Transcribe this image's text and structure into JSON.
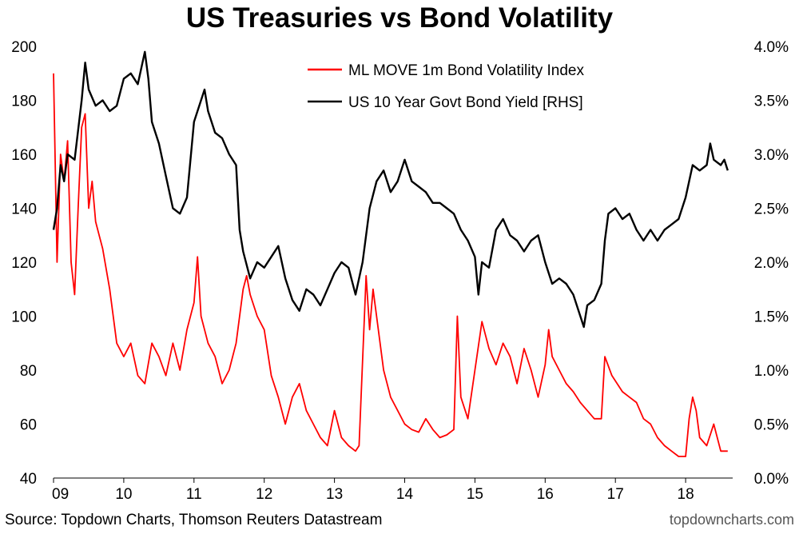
{
  "chart_data": {
    "type": "line",
    "title": "US Treasuries vs Bond Volatility",
    "x_ticks": [
      "09",
      "10",
      "11",
      "12",
      "13",
      "14",
      "15",
      "16",
      "17",
      "18"
    ],
    "y_left": {
      "ticks": [
        "40",
        "60",
        "80",
        "100",
        "120",
        "140",
        "160",
        "180",
        "200"
      ],
      "min": 40,
      "max": 200
    },
    "y_right": {
      "ticks": [
        "0.0%",
        "0.5%",
        "1.0%",
        "1.5%",
        "2.0%",
        "2.5%",
        "3.0%",
        "3.5%",
        "4.0%"
      ],
      "min": 0,
      "max": 4
    },
    "legend_position": "top-right",
    "grid": false,
    "series": [
      {
        "name": "ML MOVE 1m Bond Volatility Index",
        "axis": "left",
        "color": "#ff0000",
        "points": [
          [
            2009.0,
            190
          ],
          [
            2009.05,
            120
          ],
          [
            2009.1,
            160
          ],
          [
            2009.15,
            150
          ],
          [
            2009.2,
            165
          ],
          [
            2009.25,
            120
          ],
          [
            2009.3,
            108
          ],
          [
            2009.35,
            140
          ],
          [
            2009.4,
            170
          ],
          [
            2009.45,
            175
          ],
          [
            2009.5,
            140
          ],
          [
            2009.55,
            150
          ],
          [
            2009.6,
            135
          ],
          [
            2009.65,
            130
          ],
          [
            2009.7,
            125
          ],
          [
            2009.8,
            110
          ],
          [
            2009.9,
            90
          ],
          [
            2010.0,
            85
          ],
          [
            2010.1,
            90
          ],
          [
            2010.2,
            78
          ],
          [
            2010.3,
            75
          ],
          [
            2010.4,
            90
          ],
          [
            2010.5,
            85
          ],
          [
            2010.6,
            78
          ],
          [
            2010.7,
            90
          ],
          [
            2010.8,
            80
          ],
          [
            2010.9,
            95
          ],
          [
            2011.0,
            105
          ],
          [
            2011.05,
            122
          ],
          [
            2011.1,
            100
          ],
          [
            2011.2,
            90
          ],
          [
            2011.3,
            85
          ],
          [
            2011.4,
            75
          ],
          [
            2011.5,
            80
          ],
          [
            2011.6,
            90
          ],
          [
            2011.7,
            110
          ],
          [
            2011.75,
            115
          ],
          [
            2011.8,
            108
          ],
          [
            2011.9,
            100
          ],
          [
            2012.0,
            95
          ],
          [
            2012.1,
            78
          ],
          [
            2012.2,
            70
          ],
          [
            2012.3,
            60
          ],
          [
            2012.4,
            70
          ],
          [
            2012.5,
            75
          ],
          [
            2012.6,
            65
          ],
          [
            2012.7,
            60
          ],
          [
            2012.8,
            55
          ],
          [
            2012.9,
            52
          ],
          [
            2013.0,
            65
          ],
          [
            2013.1,
            55
          ],
          [
            2013.2,
            52
          ],
          [
            2013.3,
            50
          ],
          [
            2013.35,
            52
          ],
          [
            2013.45,
            115
          ],
          [
            2013.5,
            95
          ],
          [
            2013.55,
            110
          ],
          [
            2013.6,
            100
          ],
          [
            2013.7,
            80
          ],
          [
            2013.8,
            70
          ],
          [
            2013.9,
            65
          ],
          [
            2014.0,
            60
          ],
          [
            2014.1,
            58
          ],
          [
            2014.2,
            57
          ],
          [
            2014.3,
            62
          ],
          [
            2014.4,
            58
          ],
          [
            2014.5,
            55
          ],
          [
            2014.6,
            56
          ],
          [
            2014.7,
            58
          ],
          [
            2014.75,
            100
          ],
          [
            2014.8,
            70
          ],
          [
            2014.9,
            62
          ],
          [
            2015.0,
            80
          ],
          [
            2015.1,
            98
          ],
          [
            2015.2,
            88
          ],
          [
            2015.3,
            82
          ],
          [
            2015.4,
            90
          ],
          [
            2015.5,
            85
          ],
          [
            2015.6,
            75
          ],
          [
            2015.7,
            88
          ],
          [
            2015.8,
            80
          ],
          [
            2015.9,
            70
          ],
          [
            2016.0,
            82
          ],
          [
            2016.05,
            95
          ],
          [
            2016.1,
            85
          ],
          [
            2016.2,
            80
          ],
          [
            2016.3,
            75
          ],
          [
            2016.4,
            72
          ],
          [
            2016.5,
            68
          ],
          [
            2016.6,
            65
          ],
          [
            2016.7,
            62
          ],
          [
            2016.8,
            62
          ],
          [
            2016.85,
            85
          ],
          [
            2016.95,
            78
          ],
          [
            2017.1,
            72
          ],
          [
            2017.2,
            70
          ],
          [
            2017.3,
            68
          ],
          [
            2017.4,
            62
          ],
          [
            2017.5,
            60
          ],
          [
            2017.6,
            55
          ],
          [
            2017.7,
            52
          ],
          [
            2017.8,
            50
          ],
          [
            2017.9,
            48
          ],
          [
            2018.0,
            48
          ],
          [
            2018.05,
            62
          ],
          [
            2018.1,
            70
          ],
          [
            2018.15,
            65
          ],
          [
            2018.2,
            55
          ],
          [
            2018.3,
            52
          ],
          [
            2018.4,
            60
          ],
          [
            2018.5,
            50
          ],
          [
            2018.6,
            50
          ]
        ]
      },
      {
        "name": "US 10 Year Govt Bond Yield [RHS]",
        "axis": "right",
        "color": "#000000",
        "points": [
          [
            2009.0,
            2.3
          ],
          [
            2009.05,
            2.5
          ],
          [
            2009.1,
            2.9
          ],
          [
            2009.15,
            2.75
          ],
          [
            2009.2,
            3.0
          ],
          [
            2009.3,
            2.95
          ],
          [
            2009.4,
            3.5
          ],
          [
            2009.45,
            3.85
          ],
          [
            2009.5,
            3.6
          ],
          [
            2009.6,
            3.45
          ],
          [
            2009.7,
            3.5
          ],
          [
            2009.8,
            3.4
          ],
          [
            2009.9,
            3.45
          ],
          [
            2010.0,
            3.7
          ],
          [
            2010.1,
            3.75
          ],
          [
            2010.2,
            3.65
          ],
          [
            2010.3,
            3.95
          ],
          [
            2010.35,
            3.7
          ],
          [
            2010.4,
            3.3
          ],
          [
            2010.5,
            3.1
          ],
          [
            2010.6,
            2.8
          ],
          [
            2010.7,
            2.5
          ],
          [
            2010.8,
            2.45
          ],
          [
            2010.9,
            2.6
          ],
          [
            2011.0,
            3.3
          ],
          [
            2011.1,
            3.5
          ],
          [
            2011.15,
            3.6
          ],
          [
            2011.2,
            3.4
          ],
          [
            2011.3,
            3.2
          ],
          [
            2011.4,
            3.15
          ],
          [
            2011.5,
            3.0
          ],
          [
            2011.6,
            2.9
          ],
          [
            2011.65,
            2.3
          ],
          [
            2011.7,
            2.1
          ],
          [
            2011.8,
            1.85
          ],
          [
            2011.9,
            2.0
          ],
          [
            2012.0,
            1.95
          ],
          [
            2012.1,
            2.05
          ],
          [
            2012.2,
            2.15
          ],
          [
            2012.3,
            1.85
          ],
          [
            2012.4,
            1.65
          ],
          [
            2012.5,
            1.55
          ],
          [
            2012.6,
            1.75
          ],
          [
            2012.7,
            1.7
          ],
          [
            2012.8,
            1.6
          ],
          [
            2012.9,
            1.75
          ],
          [
            2013.0,
            1.9
          ],
          [
            2013.1,
            2.0
          ],
          [
            2013.2,
            1.95
          ],
          [
            2013.3,
            1.7
          ],
          [
            2013.4,
            2.0
          ],
          [
            2013.5,
            2.5
          ],
          [
            2013.6,
            2.75
          ],
          [
            2013.7,
            2.85
          ],
          [
            2013.8,
            2.65
          ],
          [
            2013.9,
            2.75
          ],
          [
            2014.0,
            2.95
          ],
          [
            2014.1,
            2.75
          ],
          [
            2014.2,
            2.7
          ],
          [
            2014.3,
            2.65
          ],
          [
            2014.4,
            2.55
          ],
          [
            2014.5,
            2.55
          ],
          [
            2014.6,
            2.5
          ],
          [
            2014.7,
            2.45
          ],
          [
            2014.8,
            2.3
          ],
          [
            2014.9,
            2.2
          ],
          [
            2015.0,
            2.05
          ],
          [
            2015.05,
            1.7
          ],
          [
            2015.1,
            2.0
          ],
          [
            2015.2,
            1.95
          ],
          [
            2015.3,
            2.3
          ],
          [
            2015.4,
            2.4
          ],
          [
            2015.5,
            2.25
          ],
          [
            2015.6,
            2.2
          ],
          [
            2015.7,
            2.1
          ],
          [
            2015.8,
            2.2
          ],
          [
            2015.9,
            2.25
          ],
          [
            2016.0,
            2.0
          ],
          [
            2016.1,
            1.8
          ],
          [
            2016.2,
            1.85
          ],
          [
            2016.3,
            1.8
          ],
          [
            2016.4,
            1.7
          ],
          [
            2016.5,
            1.5
          ],
          [
            2016.55,
            1.4
          ],
          [
            2016.6,
            1.6
          ],
          [
            2016.7,
            1.65
          ],
          [
            2016.8,
            1.8
          ],
          [
            2016.85,
            2.2
          ],
          [
            2016.9,
            2.45
          ],
          [
            2017.0,
            2.5
          ],
          [
            2017.1,
            2.4
          ],
          [
            2017.2,
            2.45
          ],
          [
            2017.3,
            2.3
          ],
          [
            2017.4,
            2.2
          ],
          [
            2017.5,
            2.3
          ],
          [
            2017.6,
            2.2
          ],
          [
            2017.7,
            2.3
          ],
          [
            2017.8,
            2.35
          ],
          [
            2017.9,
            2.4
          ],
          [
            2018.0,
            2.6
          ],
          [
            2018.05,
            2.75
          ],
          [
            2018.1,
            2.9
          ],
          [
            2018.2,
            2.85
          ],
          [
            2018.3,
            2.9
          ],
          [
            2018.35,
            3.1
          ],
          [
            2018.4,
            2.95
          ],
          [
            2018.5,
            2.9
          ],
          [
            2018.55,
            2.95
          ],
          [
            2018.6,
            2.85
          ]
        ]
      }
    ]
  },
  "footer": {
    "source": "Source: Topdown Charts, Thomson Reuters Datastream",
    "brand": "topdowncharts.com"
  }
}
